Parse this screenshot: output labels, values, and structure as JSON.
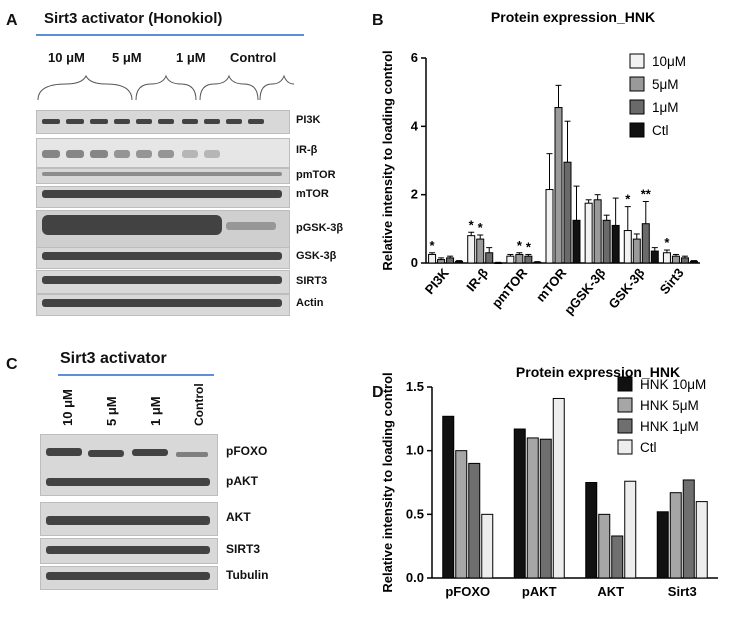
{
  "panel_a": {
    "letter": "A",
    "title": "Sirt3 activator (Honokiol)",
    "groups": [
      "10 μM",
      "5 μM",
      "1 μM",
      "Control"
    ],
    "blot_labels": [
      "PI3K",
      "IR-β",
      "pmTOR",
      "mTOR",
      "pGSK-3β",
      "GSK-3β",
      "SIRT3",
      "Actin"
    ]
  },
  "panel_c": {
    "letter": "C",
    "title": "Sirt3 activator",
    "lanes": [
      "10 μM",
      "5 μM",
      "1 μM",
      "Control"
    ],
    "blot_labels": [
      "pFOXO",
      "pAKT",
      "AKT",
      "SIRT3",
      "Tubulin"
    ]
  },
  "chart_data": [
    {
      "panel": "B",
      "type": "bar",
      "title": "Protein expression_HNK",
      "ylabel": "Relative intensity to loading control",
      "xlabel": "",
      "ylim": [
        0,
        6
      ],
      "yticks": [
        "0",
        "2",
        "4",
        "6"
      ],
      "categories": [
        "PI3K",
        "IR-β",
        "pmTOR",
        "mTOR",
        "pGSK-3β",
        "GSK-3β",
        "Sirt3"
      ],
      "series": [
        {
          "name": "10μM",
          "color": "#f2f2f2",
          "values": [
            0.25,
            0.8,
            0.2,
            2.15,
            1.75,
            0.95,
            0.3
          ],
          "errors": [
            0.05,
            0.1,
            0.05,
            1.05,
            0.1,
            0.7,
            0.08
          ]
        },
        {
          "name": "5μM",
          "color": "#9a9a9a",
          "values": [
            0.1,
            0.7,
            0.25,
            4.55,
            1.85,
            0.7,
            0.2
          ],
          "errors": [
            0.05,
            0.12,
            0.05,
            0.65,
            0.15,
            0.15,
            0.05
          ]
        },
        {
          "name": "1μM",
          "color": "#6a6a6a",
          "values": [
            0.15,
            0.3,
            0.2,
            2.95,
            1.25,
            1.15,
            0.15
          ],
          "errors": [
            0.05,
            0.15,
            0.05,
            1.2,
            0.15,
            0.65,
            0.05
          ]
        },
        {
          "name": "Ctl",
          "color": "#111111",
          "values": [
            0.05,
            0.0,
            0.02,
            1.25,
            1.1,
            0.35,
            0.05
          ],
          "errors": [
            0.02,
            0.02,
            0.02,
            1.0,
            0.8,
            0.1,
            0.02
          ]
        }
      ],
      "annotations": [
        {
          "text": "*",
          "category": 0,
          "series": 0
        },
        {
          "text": "*",
          "category": 1,
          "series": 0
        },
        {
          "text": "*",
          "category": 1,
          "series": 1
        },
        {
          "text": "*",
          "category": 2,
          "series": 1
        },
        {
          "text": "*",
          "category": 2,
          "series": 2
        },
        {
          "text": "*",
          "category": 5,
          "series": 0
        },
        {
          "text": "**",
          "category": 5,
          "series": 2
        },
        {
          "text": "*",
          "category": 6,
          "series": 0
        }
      ],
      "legend": "top-right"
    },
    {
      "panel": "D",
      "type": "bar",
      "title": "Protein expression_HNK",
      "ylabel": "Relative intensity to loading control",
      "xlabel": "",
      "ylim": [
        0,
        1.5
      ],
      "yticks": [
        "0.0",
        "0.5",
        "1.0",
        "1.5"
      ],
      "categories": [
        "pFOXO",
        "pAKT",
        "AKT",
        "Sirt3"
      ],
      "series": [
        {
          "name": "HNK 10μM",
          "color": "#111111",
          "values": [
            1.27,
            1.17,
            0.75,
            0.52
          ]
        },
        {
          "name": "HNK 5μM",
          "color": "#a6a6a6",
          "values": [
            1.0,
            1.1,
            0.5,
            0.67
          ]
        },
        {
          "name": "HNK 1μM",
          "color": "#6f6f6f",
          "values": [
            0.9,
            1.09,
            0.33,
            0.77
          ]
        },
        {
          "name": "Ctl",
          "color": "#ededed",
          "values": [
            0.5,
            1.41,
            0.76,
            0.6
          ]
        }
      ],
      "legend": "top-right"
    }
  ],
  "panel_letters": {
    "b": "B",
    "d": "D"
  }
}
